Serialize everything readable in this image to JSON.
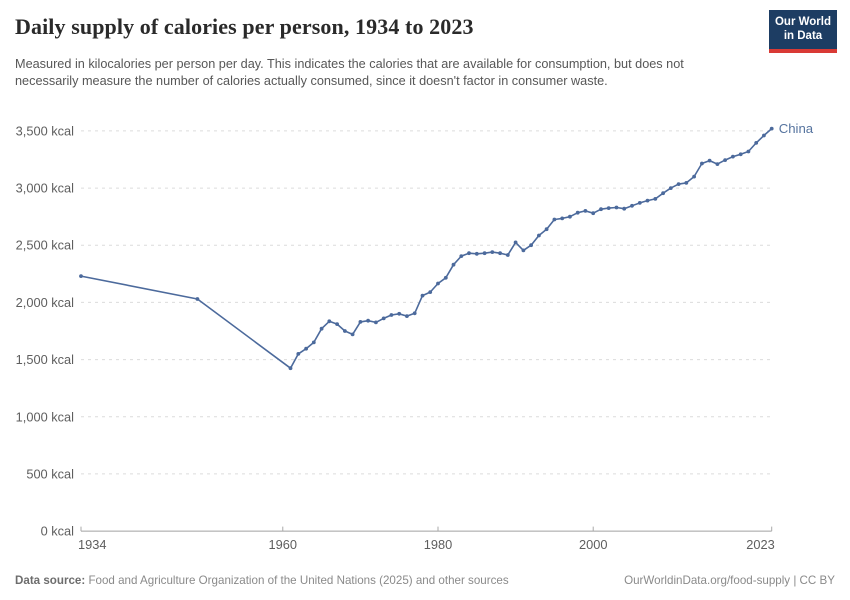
{
  "header": {
    "title": "Daily supply of calories per person, 1934 to 2023",
    "subtitle": "Measured in kilocalories per person per day. This indicates the calories that are available for consumption, but does not necessarily measure the number of calories actually consumed, since it doesn't factor in consumer waste.",
    "logo": {
      "line1": "Our World",
      "line2": "in Data",
      "bg_color": "#1d3d63",
      "accent_color": "#d93a35"
    }
  },
  "chart_data": {
    "type": "line",
    "title": "Daily supply of calories per person, 1934 to 2023",
    "xlabel": "",
    "ylabel": "kcal",
    "xlim": [
      1934,
      2023
    ],
    "ylim": [
      0,
      3500
    ],
    "grid": "dashed-horizontal",
    "legend_position": "end-of-line-label",
    "x_ticks": [
      {
        "v": 1934,
        "label": "1934"
      },
      {
        "v": 1960,
        "label": "1960"
      },
      {
        "v": 1980,
        "label": "1980"
      },
      {
        "v": 2000,
        "label": "2000"
      },
      {
        "v": 2023,
        "label": "2023"
      }
    ],
    "y_ticks": [
      {
        "v": 0,
        "label": "0 kcal"
      },
      {
        "v": 500,
        "label": "500 kcal"
      },
      {
        "v": 1000,
        "label": "1,000 kcal"
      },
      {
        "v": 1500,
        "label": "1,500 kcal"
      },
      {
        "v": 2000,
        "label": "2,000 kcal"
      },
      {
        "v": 2500,
        "label": "2,500 kcal"
      },
      {
        "v": 3000,
        "label": "3,000 kcal"
      },
      {
        "v": 3500,
        "label": "3,500 kcal"
      }
    ],
    "series": [
      {
        "name": "China",
        "color": "#4c6a9c",
        "points": [
          [
            1934,
            2230
          ],
          [
            1949,
            2030
          ],
          [
            1961,
            1425
          ],
          [
            1962,
            1550
          ],
          [
            1963,
            1595
          ],
          [
            1964,
            1650
          ],
          [
            1965,
            1770
          ],
          [
            1966,
            1835
          ],
          [
            1967,
            1810
          ],
          [
            1968,
            1750
          ],
          [
            1969,
            1720
          ],
          [
            1970,
            1830
          ],
          [
            1971,
            1840
          ],
          [
            1972,
            1825
          ],
          [
            1973,
            1860
          ],
          [
            1974,
            1890
          ],
          [
            1975,
            1900
          ],
          [
            1976,
            1880
          ],
          [
            1977,
            1905
          ],
          [
            1978,
            2060
          ],
          [
            1979,
            2090
          ],
          [
            1980,
            2165
          ],
          [
            1981,
            2215
          ],
          [
            1982,
            2330
          ],
          [
            1983,
            2405
          ],
          [
            1984,
            2430
          ],
          [
            1985,
            2425
          ],
          [
            1986,
            2430
          ],
          [
            1987,
            2440
          ],
          [
            1988,
            2430
          ],
          [
            1989,
            2415
          ],
          [
            1990,
            2525
          ],
          [
            1991,
            2455
          ],
          [
            1992,
            2500
          ],
          [
            1993,
            2585
          ],
          [
            1994,
            2640
          ],
          [
            1995,
            2725
          ],
          [
            1996,
            2735
          ],
          [
            1997,
            2750
          ],
          [
            1998,
            2785
          ],
          [
            1999,
            2800
          ],
          [
            2000,
            2780
          ],
          [
            2001,
            2815
          ],
          [
            2002,
            2825
          ],
          [
            2003,
            2830
          ],
          [
            2004,
            2820
          ],
          [
            2005,
            2845
          ],
          [
            2006,
            2870
          ],
          [
            2007,
            2890
          ],
          [
            2008,
            2905
          ],
          [
            2009,
            2955
          ],
          [
            2010,
            3000
          ],
          [
            2011,
            3035
          ],
          [
            2012,
            3045
          ],
          [
            2013,
            3100
          ],
          [
            2014,
            3215
          ],
          [
            2015,
            3240
          ],
          [
            2016,
            3210
          ],
          [
            2017,
            3245
          ],
          [
            2018,
            3275
          ],
          [
            2019,
            3295
          ],
          [
            2020,
            3320
          ],
          [
            2021,
            3395
          ],
          [
            2022,
            3460
          ],
          [
            2023,
            3520
          ]
        ]
      }
    ]
  },
  "footer": {
    "source_label": "Data source:",
    "source_text": " Food and Agriculture Organization of the United Nations (2025) and other sources",
    "right_text": "OurWorldinData.org/food-supply | CC BY"
  }
}
